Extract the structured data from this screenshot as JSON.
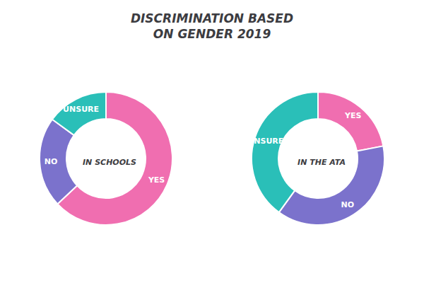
{
  "title": "DISCRIMINATION BASED\nON GENDER 2019",
  "chart_data": [
    {
      "type": "pie",
      "title": "IN SCHOOLS",
      "categories": [
        "YES",
        "NO",
        "UNSURE"
      ],
      "values": [
        63,
        22,
        15
      ],
      "colors": [
        "#F06EB0",
        "#7B72CC",
        "#2ABFB8"
      ]
    },
    {
      "type": "pie",
      "title": "IN THE ATA",
      "categories": [
        "YES",
        "NO",
        "UNSURE"
      ],
      "values": [
        22,
        38,
        40
      ],
      "colors": [
        "#F06EB0",
        "#7B72CC",
        "#2ABFB8"
      ]
    }
  ]
}
